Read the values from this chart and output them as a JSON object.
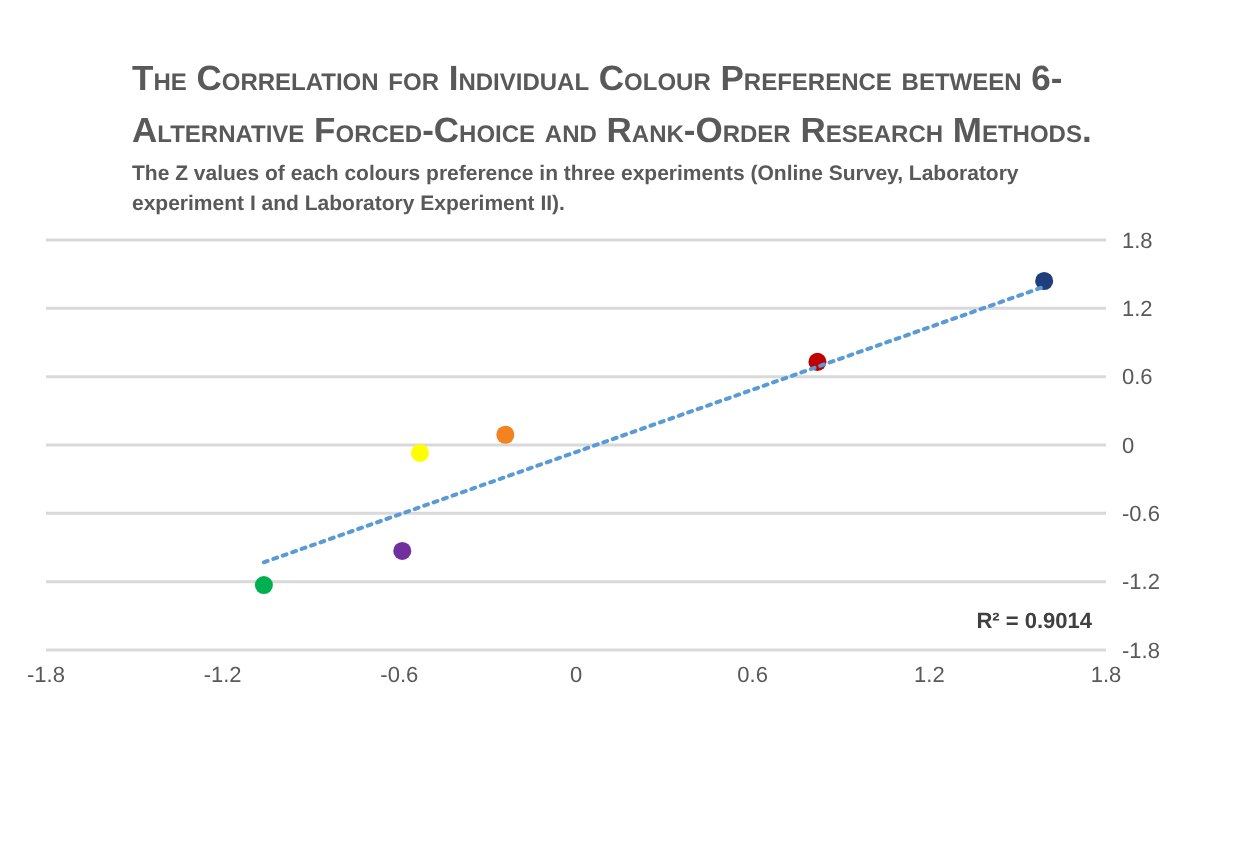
{
  "chart_data": {
    "type": "scatter",
    "title": "The Correlation for Individual Colour Preference between 6-Alternative Forced-Choice and Rank-Order Research Methods.",
    "subtitle": "The Z values of each colours preference in three experiments (Online Survey, Laboratory experiment I and Laboratory Experiment II).",
    "x": [
      1.59,
      0.82,
      -0.24,
      -0.53,
      -0.59,
      -1.06
    ],
    "series": [
      {
        "values": [
          1.44,
          0.73,
          0.09,
          -0.07,
          -0.93,
          -1.23
        ],
        "colors": [
          "#1f3f7a",
          "#c00000",
          "#f58220",
          "#ffff00",
          "#7030a0",
          "#00b050"
        ],
        "marker": "circle"
      },
      {
        "type": "line",
        "x": [
          -1.06,
          1.59
        ],
        "values": [
          -1.03,
          1.39
        ],
        "color": "#5b9bd5",
        "line_style": "dotted",
        "marker": "none"
      }
    ],
    "xlim": [
      -1.8,
      1.8
    ],
    "xticks": [
      -1.8,
      -1.2,
      -0.6,
      0,
      0.6,
      1.2,
      1.8
    ],
    "ylim": [
      -1.8,
      1.8
    ],
    "yticks": [
      -1.8,
      -1.2,
      -0.6,
      0,
      0.6,
      1.2,
      1.8
    ],
    "grid": "y",
    "annotations": [
      "R² = 0.9014"
    ]
  }
}
